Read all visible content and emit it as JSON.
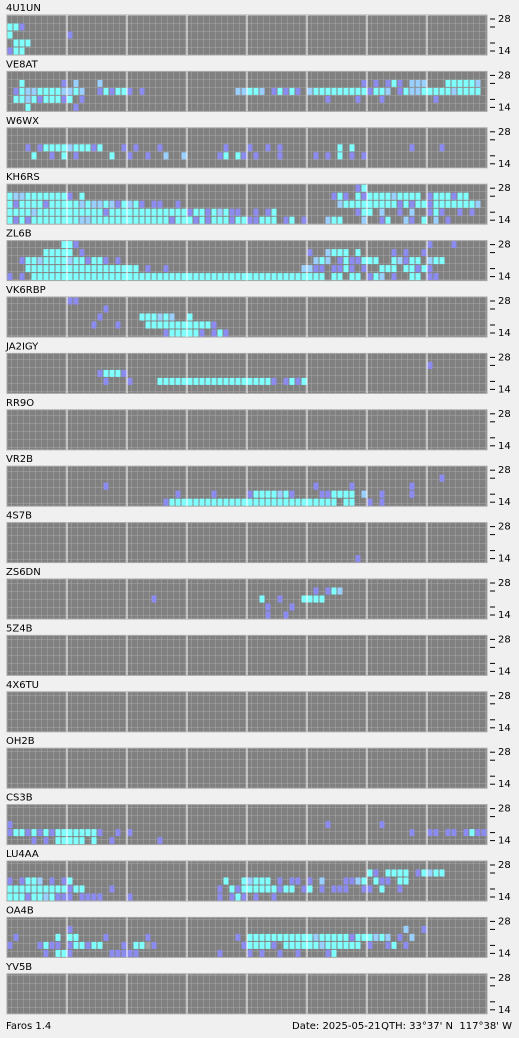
{
  "app": "Faros 1.4",
  "date": "Date: 2025-05-21",
  "qth": "QTH: 33°37' N  117°38' W",
  "band_top": "28",
  "band_bottom": "14",
  "colors": {
    "c": "#80ffff",
    "l": "#9ad0ff",
    "b": "#8c8cf0",
    "g": "#a0a0a0"
  },
  "stations": [
    {
      "name": "4U1UN",
      "rows": [
        "",
        "ccb",
        "c.........b",
        ".ccc",
        "bcc"
      ]
    },
    {
      "name": "VE8AT",
      "rows": [
        "",
        "..c......b.l...l...........................................b.b.bcb.lll...cccccl.cc",
        ".bcllccccllcl..bcbccb.b...............llccl.bcbcb.lcccccccccbccl.bcllccccclcccc",
        ".cclcbcccbc.b........................................b....b...b........b..........b",
        "...c.......b"
      ]
    },
    {
      "name": "W6WX",
      "rows": [
        "",
        "",
        "...b.bcccclcccbc...b.b...b..........b...b..b.b.........c.c.........b....b",
        "....c..b.c.b.....c..b..b..l..l.....bc.cb.b...b.....b.b.c.b.b",
        ""
      ]
    },
    {
      "name": "KH6RS",
      "rows": [
        "..........................................................bc..",
        "cllcccccccb.c.........................................bcb.cbcccclcccc.bcccbcc",
        "cbccccbccccclcllclbclcb.bb..b..........................lcccccccccbcbccbcccccccl",
        "cccclcccccccccccbcccccccccccccbccbclcbb..b.bc.............bcc.l..b.l..bcb..b.b",
        "cbcbccccccccllcccccccccccccbcccbcbcccbccbbccc.bc.b...lcc...l..bc..lb.c.l.b"
      ]
    },
    {
      "name": "ZL6B",
      "rows": [
        ".........ccb..........................................................b...b",
        "......ccccc.b.....................................b..lccc.c.....b.b..b",
        "..bcclcccclccbccb.b................................lcl.bcbbccc..clbcc.lcc",
        "...ccccccccccccccccccc.b..b......................llbb.bbcb.b..ccc.ccbcb",
        "b.b.ccccccccccccccccccccccccccccccccccccccccccccccccc.cc.cc.bcl.b..cc.bb"
      ]
    },
    {
      "name": "VK6RBP",
      "rows": [
        "..........bb",
        "................b",
        "...............b......ccclcl..c",
        "..............b...b....cccccccccccb",
        "..........................bcccccb.bcb"
      ]
    },
    {
      "name": "JA2IGY",
      "rows": [
        "",
        "......................................................................b",
        "...............bcccb",
        "................b...b....cccccccccccccccccccb.bcbc",
        ""
      ]
    },
    {
      "name": "RR9O",
      "rows": [
        "",
        "",
        "",
        "",
        ""
      ]
    },
    {
      "name": "VR2B",
      "rows": [
        "",
        "........................................................................b",
        "................b..................................b.....b.........b",
        "............................b.....b.....bcccclcb....bbcccc.l..b....b",
        "..........................bcccccccccccccccccccccccccccc.cc..b.b"
      ]
    },
    {
      "name": "4S7B",
      "rows": [
        "",
        "",
        "",
        "",
        "..........................................................b"
      ]
    },
    {
      "name": "ZS6DN",
      "rows": [
        "",
        "...................................................b.bcl",
        "........................b.................c..b...cccc",
        "...........................................b...b",
        "...........................................b..b"
      ]
    },
    {
      "name": "5Z4B",
      "rows": [
        "",
        "",
        "",
        "",
        ""
      ]
    },
    {
      "name": "4X6TU",
      "rows": [
        "",
        "",
        "",
        "",
        ""
      ]
    },
    {
      "name": "OH2B",
      "rows": [
        "",
        "",
        "",
        "",
        ""
      ]
    },
    {
      "name": "CS3B",
      "rows": [
        "",
        "......................................................................................",
        "b....................................................b........b.................b",
        "bccbcbcbcccccccb..b.b..............................................b..bb.bb.bcbbcc",
        "....b.b.ccccc.c..b.......b"
      ]
    },
    {
      "name": "LU4AA",
      "rows": [
        "",
        "............................................................cb.cccc.bclcc",
        "b.bccl.b.bc.........................c..clccc.b.bb.b.l...bblc.cbb.cc",
        "ccccccccccbcc....b.................b.cbccccccbcc.bc.b.bbb..bb.c..b",
        "cccbcclcbbb.bbbb....b..............b.bcb.b..b"
      ]
    },
    {
      "name": "OA4B",
      "rows": [
        "",
        "..........b.......................................................l..b",
        ".b......c.cc....b......b..............b.ccccccccccclcccccbccclcl.b.l",
        "b....bcbb.bccbcc...b.ccgb..............bccccb.cccccclcccccc.b..bc.b",
        "......b.ccb......bbbbb.............b....b.b..b..b....bc"
      ]
    },
    {
      "name": "YV5B",
      "rows": [
        "",
        "",
        "",
        "",
        ""
      ]
    }
  ]
}
